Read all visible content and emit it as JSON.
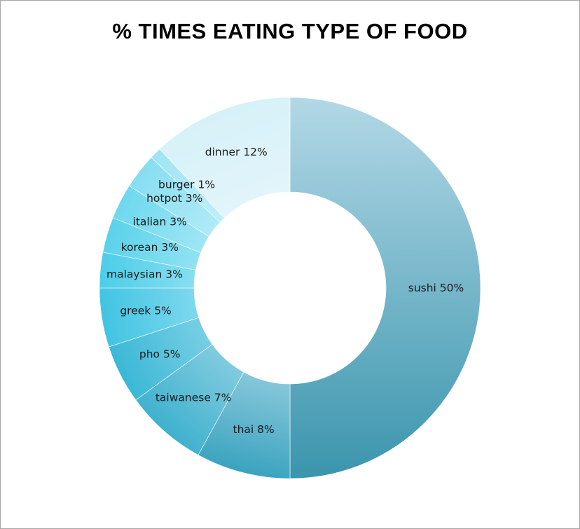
{
  "chart_data": {
    "type": "pie",
    "donut": true,
    "title": "% TIMES EATING TYPE OF FOOD",
    "slices": [
      {
        "name": "sushi",
        "value": 50,
        "label": "sushi 50%",
        "color_outer": "#3a95ad",
        "color_inner": "#b3d8e6"
      },
      {
        "name": "thai",
        "value": 8,
        "label": "thai 8%",
        "color_outer": "#3aa3bf",
        "color_inner": "#c2e3ef"
      },
      {
        "name": "taiwanese",
        "value": 7,
        "label": "taiwanese 7%",
        "color_outer": "#3fb1cd",
        "color_inner": "#b5e0ee"
      },
      {
        "name": "pho",
        "value": 5,
        "label": "pho 5%",
        "color_outer": "#3ab8d6",
        "color_inner": "#a8e0f0"
      },
      {
        "name": "greek",
        "value": 5,
        "label": "greek 5%",
        "color_outer": "#40c4e2",
        "color_inner": "#aee8f7"
      },
      {
        "name": "malaysian",
        "value": 3,
        "label": "malaysian 3%",
        "color_outer": "#4ccde8",
        "color_inner": "#b6ecf8"
      },
      {
        "name": "korean",
        "value": 3,
        "label": "korean 3%",
        "color_outer": "#5ad2ea",
        "color_inner": "#bfeff9"
      },
      {
        "name": "italian",
        "value": 3,
        "label": "italian 3%",
        "color_outer": "#6dd8ee",
        "color_inner": "#c8f1fa"
      },
      {
        "name": "hotpot",
        "value": 3,
        "label": "hotpot 3%",
        "color_outer": "#86def1",
        "color_inner": "#d2f4fb"
      },
      {
        "name": "burger",
        "value": 1,
        "label": "burger 1%",
        "color_outer": "#9fe4f4",
        "color_inner": "#daf6fc"
      },
      {
        "name": "dinner",
        "value": 12,
        "label": "dinner 12%",
        "color_outer": "#d6f1f8",
        "color_inner": "#eaf8fc"
      }
    ],
    "legend": "none"
  }
}
